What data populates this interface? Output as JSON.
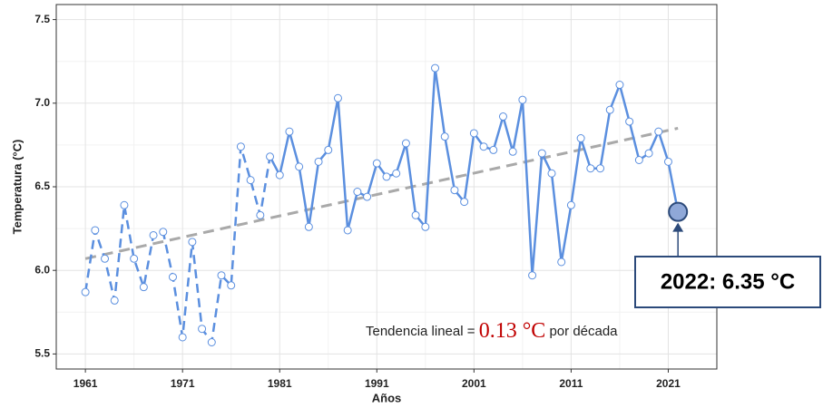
{
  "chart_data": {
    "type": "line",
    "x_label": "Años",
    "y_label": "Temperatura (°C)",
    "x": [
      1961,
      1962,
      1963,
      1964,
      1965,
      1966,
      1967,
      1968,
      1969,
      1970,
      1971,
      1972,
      1973,
      1974,
      1975,
      1976,
      1977,
      1978,
      1979,
      1980,
      1981,
      1982,
      1983,
      1984,
      1985,
      1986,
      1987,
      1988,
      1989,
      1990,
      1991,
      1992,
      1993,
      1994,
      1995,
      1996,
      1997,
      1998,
      1999,
      2000,
      2001,
      2002,
      2003,
      2004,
      2005,
      2006,
      2007,
      2008,
      2009,
      2010,
      2011,
      2012,
      2013,
      2014,
      2015,
      2016,
      2017,
      2018,
      2019,
      2020,
      2021,
      2022
    ],
    "series": [
      {
        "color": "#5b8fdf",
        "values": [
          5.87,
          6.24,
          6.07,
          5.82,
          6.39,
          6.07,
          5.9,
          6.21,
          6.23,
          5.96,
          5.6,
          6.17,
          5.65,
          5.57,
          5.97,
          5.91,
          6.74,
          6.54,
          6.33,
          6.68,
          6.57,
          6.83,
          6.62,
          6.26,
          6.65,
          6.72,
          7.03,
          6.24,
          6.47,
          6.44,
          6.64,
          6.56,
          6.58,
          6.76,
          6.33,
          6.26,
          7.21,
          6.8,
          6.48,
          6.41,
          6.82,
          6.74,
          6.72,
          6.92,
          6.71,
          7.02,
          5.97,
          6.7,
          6.58,
          6.05,
          6.39,
          6.79,
          6.61,
          6.61,
          6.96,
          7.11,
          6.89,
          6.66,
          6.7,
          6.83,
          6.65,
          6.35
        ]
      }
    ],
    "dashed_until_x": 1980,
    "highlight_last": true,
    "trend": {
      "color": "#a9a9a9",
      "x": [
        1961,
        2022
      ],
      "values": [
        6.07,
        6.85
      ]
    },
    "xlim": [
      1958,
      2026
    ],
    "xticks": [
      1961,
      1971,
      1981,
      1991,
      2001,
      2011,
      2021
    ],
    "ylim": [
      5.41,
      7.59
    ],
    "yticks": [
      5.5,
      {
        "value": 6,
        "label": "6.0"
      },
      6.5,
      {
        "value": 7,
        "label": "7.0"
      },
      7.5
    ],
    "grid": true,
    "annotations": {
      "last_point": "2022: 6.35 °C",
      "trend_prefix": "Tendencia lineal =",
      "trend_value": "0.13 °C",
      "trend_suffix": "por década"
    }
  }
}
